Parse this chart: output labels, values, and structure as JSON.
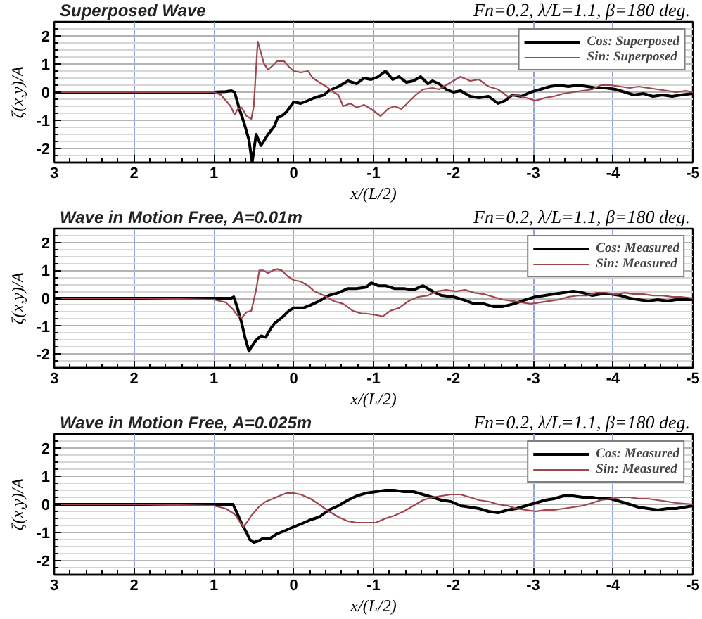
{
  "chart_data": [
    {
      "type": "line",
      "title": "Superposed Wave",
      "subtitle": "Fn=0.2, λ/L=1.1, β=180 deg.",
      "xlabel": "x/(L/2)",
      "ylabel": "ζ(x,y)/A",
      "xlim": [
        3,
        -5
      ],
      "ylim": [
        -2.5,
        2.5
      ],
      "xticks": [
        3,
        2,
        1,
        0,
        -1,
        -2,
        -3,
        -4,
        -5
      ],
      "yticks": [
        -2,
        -1,
        0,
        1,
        2
      ],
      "grid": true,
      "legend": "top right",
      "series": [
        {
          "name": "Cos: Superposed",
          "color": "#000000",
          "x": [
            3,
            2,
            1,
            0.85,
            0.78,
            0.74,
            0.68,
            0.62,
            0.56,
            0.52,
            0.47,
            0.41,
            0.32,
            0.24,
            0.2,
            0.15,
            0.09,
            0,
            -0.09,
            -0.18,
            -0.26,
            -0.38,
            -0.44,
            -0.56,
            -0.68,
            -0.79,
            -0.88,
            -0.97,
            -1.06,
            -1.15,
            -1.24,
            -1.32,
            -1.41,
            -1.5,
            -1.59,
            -1.68,
            -1.74,
            -1.82,
            -1.91,
            -2,
            -2.09,
            -2.21,
            -2.32,
            -2.44,
            -2.56,
            -2.65,
            -2.74,
            -2.85,
            -2.97,
            -3.09,
            -3.21,
            -3.32,
            -3.44,
            -3.56,
            -3.68,
            -3.79,
            -3.91,
            -4.03,
            -4.15,
            -4.26,
            -4.38,
            -4.5,
            -4.62,
            -4.74,
            -4.85,
            -5
          ],
          "values": [
            0,
            0,
            0,
            0.02,
            0.05,
            0,
            -0.6,
            -1.1,
            -1.7,
            -2.5,
            -1.5,
            -1.9,
            -1.5,
            -1.2,
            -0.9,
            -0.85,
            -0.7,
            -0.35,
            -0.4,
            -0.3,
            -0.2,
            -0.1,
            0.05,
            0.2,
            0.4,
            0.3,
            0.5,
            0.45,
            0.55,
            0.75,
            0.45,
            0.55,
            0.35,
            0.4,
            0.55,
            0.3,
            0.4,
            0.3,
            0.1,
            0,
            0.05,
            -0.15,
            -0.2,
            -0.15,
            -0.4,
            -0.3,
            -0.1,
            -0.15,
            0,
            0.1,
            0.2,
            0.25,
            0.2,
            0.25,
            0.2,
            0.15,
            0.15,
            0.1,
            0,
            -0.1,
            -0.05,
            -0.15,
            -0.1,
            -0.15,
            -0.1,
            -0.05
          ]
        },
        {
          "name": "Sin: Superposed",
          "color": "#a0454d",
          "x": [
            3,
            2,
            1,
            0.91,
            0.79,
            0.74,
            0.7,
            0.65,
            0.59,
            0.53,
            0.5,
            0.45,
            0.41,
            0.37,
            0.32,
            0.26,
            0.21,
            0.12,
            0.06,
            0,
            -0.09,
            -0.18,
            -0.24,
            -0.32,
            -0.41,
            -0.5,
            -0.56,
            -0.62,
            -0.71,
            -0.79,
            -0.88,
            -0.97,
            -1.09,
            -1.18,
            -1.26,
            -1.35,
            -1.44,
            -1.53,
            -1.62,
            -1.74,
            -1.82,
            -1.91,
            -2.03,
            -2.09,
            -2.21,
            -2.32,
            -2.44,
            -2.56,
            -2.68,
            -2.79,
            -2.91,
            -3.03,
            -3.15,
            -3.26,
            -3.38,
            -3.5,
            -3.62,
            -3.74,
            -3.85,
            -3.97,
            -4.09,
            -4.21,
            -4.32,
            -4.44,
            -4.56,
            -4.68,
            -4.79,
            -4.91,
            -5
          ],
          "values": [
            0,
            0,
            0,
            -0.1,
            -0.5,
            -0.8,
            -0.6,
            -0.55,
            -0.85,
            -0.95,
            -0.5,
            1.8,
            1.4,
            1.0,
            0.8,
            0.95,
            1.1,
            1.1,
            0.9,
            0.75,
            0.7,
            0.75,
            0.5,
            0.35,
            0.2,
            0,
            -0.1,
            -0.5,
            -0.4,
            -0.55,
            -0.45,
            -0.6,
            -0.85,
            -0.6,
            -0.5,
            -0.6,
            -0.35,
            -0.1,
            0.1,
            0.15,
            0.1,
            0.25,
            0.45,
            0.55,
            0.4,
            0.45,
            0.2,
            0.1,
            -0.15,
            -0.1,
            -0.2,
            -0.3,
            -0.2,
            -0.15,
            -0.05,
            0,
            0.05,
            0.1,
            0.25,
            0.25,
            0.2,
            0.15,
            0.2,
            0.15,
            0.1,
            0.05,
            0,
            0.05,
            0
          ]
        }
      ]
    },
    {
      "type": "line",
      "title": "Wave in Motion Free, A=0.01m",
      "subtitle": "Fn=0.2, λ/L=1.1, β=180 deg.",
      "xlabel": "x/(L/2)",
      "ylabel": "ζ(x,y)/A",
      "xlim": [
        3,
        -5
      ],
      "ylim": [
        -2.5,
        2.5
      ],
      "xticks": [
        3,
        2,
        1,
        0,
        -1,
        -2,
        -3,
        -4,
        -5
      ],
      "yticks": [
        -2,
        -1,
        0,
        1,
        2
      ],
      "grid": true,
      "legend": "top right",
      "series": [
        {
          "name": "Cos: Measured",
          "color": "#000000",
          "x": [
            3,
            2,
            1,
            0.78,
            0.75,
            0.71,
            0.65,
            0.61,
            0.56,
            0.53,
            0.47,
            0.41,
            0.35,
            0.29,
            0.24,
            0.15,
            0.06,
            0,
            -0.12,
            -0.21,
            -0.32,
            -0.44,
            -0.56,
            -0.68,
            -0.79,
            -0.91,
            -0.97,
            -1.06,
            -1.15,
            -1.26,
            -1.38,
            -1.5,
            -1.62,
            -1.74,
            -1.85,
            -2,
            -2.12,
            -2.26,
            -2.38,
            -2.5,
            -2.62,
            -2.76,
            -2.91,
            -3.03,
            -3.15,
            -3.26,
            -3.38,
            -3.5,
            -3.62,
            -3.74,
            -3.85,
            -3.97,
            -4.09,
            -4.21,
            -4.32,
            -4.44,
            -4.56,
            -4.68,
            -4.79,
            -5
          ],
          "values": [
            0,
            0,
            0,
            0,
            0.05,
            -0.3,
            -0.9,
            -1.4,
            -1.9,
            -1.75,
            -1.5,
            -1.35,
            -1.4,
            -1.1,
            -0.9,
            -0.7,
            -0.45,
            -0.35,
            -0.35,
            -0.25,
            -0.1,
            0.1,
            0.2,
            0.35,
            0.35,
            0.4,
            0.55,
            0.45,
            0.45,
            0.35,
            0.35,
            0.3,
            0.45,
            0.25,
            0.1,
            0.05,
            -0.05,
            -0.2,
            -0.2,
            -0.3,
            -0.3,
            -0.2,
            -0.05,
            0.05,
            0.1,
            0.15,
            0.2,
            0.25,
            0.2,
            0.1,
            0.15,
            0.15,
            0.1,
            0,
            -0.05,
            -0.1,
            -0.05,
            -0.1,
            -0.05,
            -0.05
          ]
        },
        {
          "name": "Sin: Measured",
          "color": "#a0454d",
          "x": [
            3,
            2,
            1,
            0.85,
            0.76,
            0.71,
            0.65,
            0.59,
            0.53,
            0.47,
            0.43,
            0.38,
            0.32,
            0.26,
            0.21,
            0.15,
            0.08,
            0,
            -0.09,
            -0.18,
            -0.26,
            -0.38,
            -0.5,
            -0.62,
            -0.74,
            -0.85,
            -0.91,
            -1.03,
            -1.12,
            -1.21,
            -1.32,
            -1.44,
            -1.56,
            -1.68,
            -1.79,
            -1.91,
            -2.03,
            -2.15,
            -2.26,
            -2.38,
            -2.5,
            -2.62,
            -2.74,
            -2.85,
            -2.97,
            -3.09,
            -3.21,
            -3.32,
            -3.44,
            -3.56,
            -3.68,
            -3.79,
            -3.91,
            -4.03,
            -4.15,
            -4.26,
            -4.38,
            -4.5,
            -4.62,
            -4.74,
            -4.85,
            -5
          ],
          "values": [
            0,
            0,
            -0.05,
            -0.15,
            -0.4,
            -0.6,
            -0.7,
            -0.5,
            -0.45,
            0.3,
            1.0,
            1.0,
            0.9,
            1.0,
            1.05,
            1.0,
            0.8,
            0.65,
            0.6,
            0.45,
            0.25,
            0.1,
            -0.1,
            -0.2,
            -0.45,
            -0.55,
            -0.55,
            -0.6,
            -0.65,
            -0.45,
            -0.35,
            -0.1,
            0.05,
            0.1,
            0.25,
            0.3,
            0.25,
            0.3,
            0.2,
            0.15,
            0.05,
            -0.05,
            -0.1,
            -0.15,
            -0.2,
            -0.15,
            -0.1,
            -0.05,
            0.05,
            0.1,
            0.1,
            0.2,
            0.2,
            0.15,
            0.2,
            0.15,
            0.15,
            0.1,
            0.1,
            0.05,
            0.05,
            0
          ]
        }
      ]
    },
    {
      "type": "line",
      "title": "Wave in Motion Free, A=0.025m",
      "subtitle": "Fn=0.2, λ/L=1.1, β=180 deg.",
      "xlabel": "x/(L/2)",
      "ylabel": "ζ(x,y)/A",
      "xlim": [
        3,
        -5
      ],
      "ylim": [
        -2.5,
        2.5
      ],
      "xticks": [
        3,
        2,
        1,
        0,
        -1,
        -2,
        -3,
        -4,
        -5
      ],
      "yticks": [
        -2,
        -1,
        0,
        1,
        2
      ],
      "grid": true,
      "legend": "top right",
      "series": [
        {
          "name": "Cos: Measured",
          "color": "#000000",
          "x": [
            3,
            2,
            1,
            0.76,
            0.71,
            0.65,
            0.59,
            0.55,
            0.5,
            0.44,
            0.38,
            0.29,
            0.21,
            0.12,
            0,
            -0.09,
            -0.21,
            -0.32,
            -0.44,
            -0.56,
            -0.68,
            -0.79,
            -0.91,
            -1.03,
            -1.15,
            -1.26,
            -1.38,
            -1.5,
            -1.62,
            -1.74,
            -1.85,
            -1.97,
            -2.09,
            -2.21,
            -2.32,
            -2.44,
            -2.56,
            -2.68,
            -2.79,
            -2.91,
            -3.03,
            -3.15,
            -3.26,
            -3.38,
            -3.5,
            -3.62,
            -3.74,
            -3.85,
            -3.97,
            -4.09,
            -4.21,
            -4.32,
            -4.44,
            -4.56,
            -4.68,
            -4.79,
            -5
          ],
          "values": [
            0,
            0,
            0,
            0,
            -0.3,
            -0.7,
            -1.0,
            -1.25,
            -1.35,
            -1.3,
            -1.2,
            -1.2,
            -1.05,
            -0.95,
            -0.8,
            -0.7,
            -0.55,
            -0.45,
            -0.2,
            -0.05,
            0.15,
            0.3,
            0.4,
            0.45,
            0.5,
            0.5,
            0.45,
            0.45,
            0.35,
            0.25,
            0.15,
            0.1,
            -0.05,
            -0.1,
            -0.15,
            -0.25,
            -0.3,
            -0.2,
            -0.15,
            -0.05,
            0.05,
            0.15,
            0.2,
            0.3,
            0.3,
            0.25,
            0.25,
            0.2,
            0.2,
            0.1,
            0,
            -0.1,
            -0.15,
            -0.2,
            -0.15,
            -0.15,
            -0.05
          ]
        },
        {
          "name": "Sin: Measured",
          "color": "#a0454d",
          "x": [
            3,
            2,
            1,
            0.85,
            0.74,
            0.68,
            0.63,
            0.59,
            0.53,
            0.44,
            0.35,
            0.26,
            0.18,
            0.09,
            0,
            -0.09,
            -0.21,
            -0.32,
            -0.44,
            -0.56,
            -0.68,
            -0.79,
            -0.91,
            -1.03,
            -1.15,
            -1.26,
            -1.38,
            -1.5,
            -1.62,
            -1.74,
            -1.85,
            -1.97,
            -2.09,
            -2.21,
            -2.32,
            -2.44,
            -2.56,
            -2.68,
            -2.79,
            -2.91,
            -3.03,
            -3.15,
            -3.26,
            -3.38,
            -3.5,
            -3.62,
            -3.74,
            -3.85,
            -3.97,
            -4.09,
            -4.21,
            -4.32,
            -4.44,
            -4.56,
            -4.68,
            -4.79,
            -5
          ],
          "values": [
            0,
            0,
            -0.05,
            -0.15,
            -0.35,
            -0.6,
            -0.8,
            -0.65,
            -0.4,
            -0.1,
            0.1,
            0.2,
            0.3,
            0.4,
            0.4,
            0.35,
            0.2,
            0,
            -0.25,
            -0.45,
            -0.6,
            -0.65,
            -0.65,
            -0.65,
            -0.5,
            -0.4,
            -0.25,
            -0.05,
            0.15,
            0.25,
            0.3,
            0.35,
            0.35,
            0.25,
            0.15,
            0.1,
            0,
            -0.05,
            -0.15,
            -0.2,
            -0.25,
            -0.2,
            -0.2,
            -0.15,
            -0.1,
            -0.05,
            0.05,
            0.15,
            0.2,
            0.25,
            0.25,
            0.2,
            0.2,
            0.15,
            0.1,
            0.05,
            0
          ]
        }
      ]
    }
  ]
}
